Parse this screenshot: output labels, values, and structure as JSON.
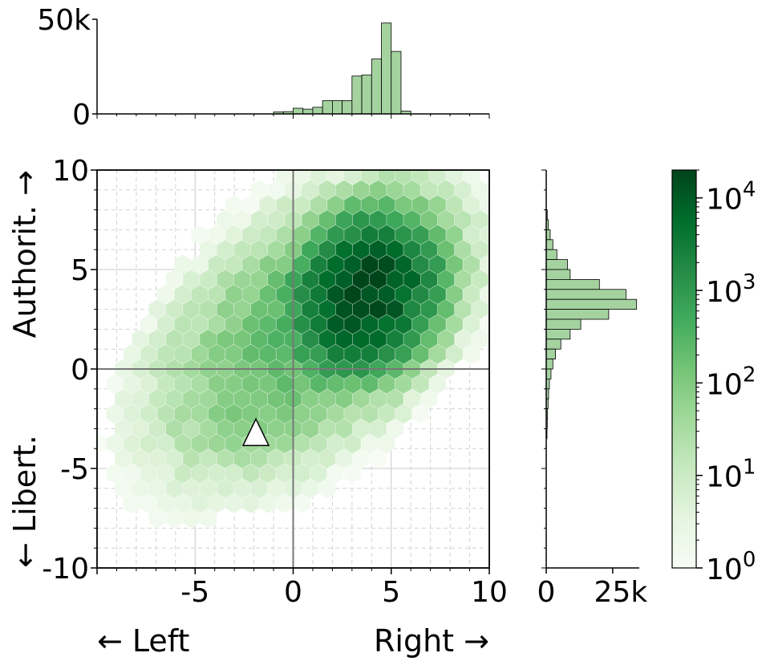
{
  "chart_data": {
    "type": "hexbin",
    "xlabel_left": "← Left",
    "xlabel_right": "Right →",
    "ylabel_top": "Authorit. →",
    "ylabel_bottom": "← Libert.",
    "xlim": [
      -10,
      10
    ],
    "ylim": [
      -10,
      10
    ],
    "x_ticks": [
      -10,
      -5,
      0,
      5,
      10
    ],
    "x_tick_labels": [
      "",
      "-5",
      "0",
      "5",
      "10"
    ],
    "y_ticks": [
      -10,
      -5,
      0,
      5,
      10
    ],
    "y_tick_labels": [
      "-10",
      "-5",
      "0",
      "5",
      "10"
    ],
    "grid": true,
    "colormap": "Greens",
    "colorbar": {
      "scale": "log",
      "range": [
        1,
        20000
      ],
      "ticks": [
        {
          "value": 1,
          "base": "10",
          "exp": "0"
        },
        {
          "value": 10,
          "base": "10",
          "exp": "1"
        },
        {
          "value": 100,
          "base": "10",
          "exp": "2"
        },
        {
          "value": 1000,
          "base": "10",
          "exp": "3"
        },
        {
          "value": 10000,
          "base": "10",
          "exp": "4"
        }
      ]
    },
    "marker": {
      "shape": "triangle",
      "x": -1.9,
      "y": -3.4
    },
    "top_hist": {
      "ylim": [
        0,
        50000
      ],
      "y_tick_labels": [
        "0",
        "50k"
      ],
      "y_tick_values": [
        0,
        50000
      ],
      "bin_width": 0.5,
      "bins": [
        {
          "x0": -1.0,
          "count": 1000
        },
        {
          "x0": -0.5,
          "count": 1200
        },
        {
          "x0": 0.0,
          "count": 3000
        },
        {
          "x0": 0.5,
          "count": 2500
        },
        {
          "x0": 1.0,
          "count": 3500
        },
        {
          "x0": 1.5,
          "count": 7000
        },
        {
          "x0": 2.0,
          "count": 7000
        },
        {
          "x0": 2.5,
          "count": 7000
        },
        {
          "x0": 3.0,
          "count": 20000
        },
        {
          "x0": 3.5,
          "count": 20500
        },
        {
          "x0": 4.0,
          "count": 29000
        },
        {
          "x0": 4.5,
          "count": 48000
        },
        {
          "x0": 5.0,
          "count": 33000
        },
        {
          "x0": 5.5,
          "count": 1500
        }
      ]
    },
    "right_hist": {
      "xlim": [
        0,
        35000
      ],
      "x_tick_labels": [
        "0",
        "25k"
      ],
      "x_tick_values": [
        0,
        25000
      ],
      "bin_width": 0.5,
      "bins": [
        {
          "y0": 7.5,
          "count": 400
        },
        {
          "y0": 7.0,
          "count": 800
        },
        {
          "y0": 6.5,
          "count": 1500
        },
        {
          "y0": 6.0,
          "count": 2500
        },
        {
          "y0": 5.5,
          "count": 4000
        },
        {
          "y0": 5.0,
          "count": 8000
        },
        {
          "y0": 4.5,
          "count": 9000
        },
        {
          "y0": 4.0,
          "count": 20000
        },
        {
          "y0": 3.5,
          "count": 30000
        },
        {
          "y0": 3.0,
          "count": 34000
        },
        {
          "y0": 2.5,
          "count": 23500
        },
        {
          "y0": 2.0,
          "count": 13000
        },
        {
          "y0": 1.5,
          "count": 9000
        },
        {
          "y0": 1.0,
          "count": 5500
        },
        {
          "y0": 0.5,
          "count": 3500
        },
        {
          "y0": 0.0,
          "count": 2500
        },
        {
          "y0": -0.5,
          "count": 1800
        },
        {
          "y0": -1.0,
          "count": 1200
        },
        {
          "y0": -1.5,
          "count": 900
        },
        {
          "y0": -2.0,
          "count": 700
        },
        {
          "y0": -2.5,
          "count": 500
        },
        {
          "y0": -3.0,
          "count": 400
        },
        {
          "y0": -3.5,
          "count": 300
        }
      ]
    },
    "density_model": {
      "peak": 20000,
      "components": [
        {
          "cx": 3.7,
          "cy": 3.8,
          "sx": 1.4,
          "sy": 1.5,
          "rho": 0.2,
          "weight": 1.0
        },
        {
          "cx": 0.8,
          "cy": 2.0,
          "sx": 3.2,
          "sy": 3.0,
          "rho": 0.5,
          "weight": 0.012
        },
        {
          "cx": -1.5,
          "cy": -2.0,
          "sx": 1.6,
          "sy": 1.3,
          "rho": 0.2,
          "weight": 0.0008
        }
      ]
    }
  }
}
